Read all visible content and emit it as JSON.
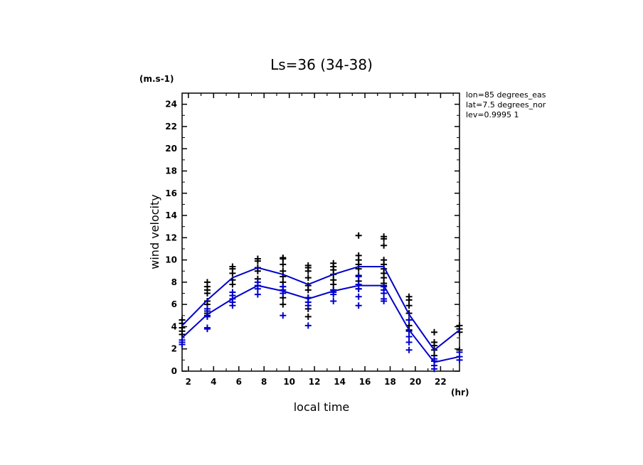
{
  "chart_data": {
    "type": "line",
    "title": "Ls=36 (34-38)",
    "xlabel": "local time",
    "xunit": "(hr)",
    "ylabel": "wind velocity",
    "yunit": "(m.s-1)",
    "xlim": [
      1.5,
      23.5
    ],
    "ylim": [
      0,
      25
    ],
    "xticks": [
      "2",
      "4",
      "6",
      "8",
      "10",
      "12",
      "14",
      "16",
      "18",
      "20",
      "22"
    ],
    "yticks": [
      "0",
      "2",
      "4",
      "6",
      "8",
      "10",
      "12",
      "14",
      "16",
      "18",
      "20",
      "22",
      "24"
    ],
    "info": [
      "lon=85 degrees_eas",
      "lat=7.5 degrees_nor",
      "lev=0.9995 1"
    ],
    "colors": {
      "black_series": "#000000",
      "blue_series": "#0000cc"
    },
    "x": [
      1.5,
      3.5,
      5.5,
      7.5,
      9.5,
      11.5,
      13.5,
      15.5,
      17.5,
      19.5,
      21.5,
      23.5
    ],
    "series": [
      {
        "color": "#0000cc",
        "values": [
          4.1,
          6.4,
          8.4,
          9.3,
          8.7,
          7.8,
          8.7,
          9.4,
          9.4,
          5.1,
          1.9,
          3.7
        ]
      },
      {
        "color": "#0000cc",
        "values": [
          3.0,
          5.1,
          6.5,
          7.7,
          7.2,
          6.5,
          7.2,
          7.7,
          7.7,
          3.7,
          0.8,
          1.3
        ]
      }
    ],
    "scatter": [
      {
        "color": "#000000",
        "x": 1.5,
        "y": [
          3.3,
          3.6,
          3.9,
          4.3,
          4.6
        ]
      },
      {
        "color": "#0000cc",
        "x": 1.5,
        "y": [
          2.4,
          2.6,
          2.8
        ]
      },
      {
        "color": "#000000",
        "x": 3.5,
        "y": [
          5.0,
          5.2,
          6.0,
          6.3,
          7.0,
          7.3,
          7.6,
          8.0
        ]
      },
      {
        "color": "#0000cc",
        "x": 3.5,
        "y": [
          3.8,
          3.9,
          4.9,
          5.4,
          5.6
        ]
      },
      {
        "color": "#000000",
        "x": 5.5,
        "y": [
          7.8,
          8.2,
          8.8,
          9.2,
          9.4
        ]
      },
      {
        "color": "#0000cc",
        "x": 5.5,
        "y": [
          5.9,
          6.2,
          6.5,
          6.8,
          7.1
        ]
      },
      {
        "color": "#000000",
        "x": 7.5,
        "y": [
          8.3,
          9.0,
          9.3,
          9.9,
          10.1
        ]
      },
      {
        "color": "#0000cc",
        "x": 7.5,
        "y": [
          6.9,
          7.4,
          7.7,
          8.0
        ]
      },
      {
        "color": "#000000",
        "x": 9.5,
        "y": [
          6.0,
          6.6,
          7.6,
          8.0,
          8.5,
          9.0,
          9.6,
          10.1,
          10.2
        ]
      },
      {
        "color": "#0000cc",
        "x": 9.5,
        "y": [
          5.0,
          7.0,
          7.3,
          7.6
        ]
      },
      {
        "color": "#000000",
        "x": 11.5,
        "y": [
          4.9,
          5.6,
          6.6,
          7.3,
          7.7,
          8.4,
          9.0,
          9.3,
          9.5
        ]
      },
      {
        "color": "#0000cc",
        "x": 11.5,
        "y": [
          4.1,
          5.9,
          6.2,
          6.6
        ]
      },
      {
        "color": "#000000",
        "x": 13.5,
        "y": [
          7.3,
          7.8,
          8.2,
          8.7,
          9.1,
          9.4,
          9.7
        ]
      },
      {
        "color": "#0000cc",
        "x": 13.5,
        "y": [
          6.3,
          6.9,
          7.1,
          7.3
        ]
      },
      {
        "color": "#000000",
        "x": 15.5,
        "y": [
          7.4,
          8.1,
          8.6,
          9.2,
          9.6,
          10.0,
          10.4,
          12.2
        ]
      },
      {
        "color": "#0000cc",
        "x": 15.5,
        "y": [
          5.9,
          6.7,
          7.4,
          7.8,
          8.5
        ]
      },
      {
        "color": "#000000",
        "x": 17.5,
        "y": [
          7.7,
          7.9,
          8.4,
          8.8,
          9.2,
          9.6,
          10.0,
          11.3,
          11.9,
          12.1
        ]
      },
      {
        "color": "#0000cc",
        "x": 17.5,
        "y": [
          6.3,
          6.5,
          7.0,
          7.3,
          7.6
        ]
      },
      {
        "color": "#000000",
        "x": 19.5,
        "y": [
          3.7,
          4.1,
          4.6,
          5.2,
          5.9,
          6.4,
          6.7
        ]
      },
      {
        "color": "#0000cc",
        "x": 19.5,
        "y": [
          1.9,
          2.6,
          3.1,
          3.6,
          4.6
        ]
      },
      {
        "color": "#000000",
        "x": 21.5,
        "y": [
          0.9,
          1.4,
          1.9,
          2.3,
          2.6,
          3.5
        ]
      },
      {
        "color": "#0000cc",
        "x": 21.5,
        "y": [
          0.2,
          0.5,
          0.9,
          1.1
        ]
      },
      {
        "color": "#000000",
        "x": 23.5,
        "y": [
          1.9,
          3.5,
          3.8,
          4.1
        ]
      },
      {
        "color": "#0000cc",
        "x": 23.5,
        "y": [
          1.0,
          1.3,
          1.7
        ]
      }
    ]
  }
}
